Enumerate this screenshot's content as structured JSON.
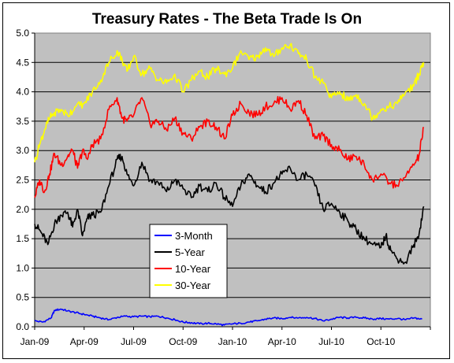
{
  "chart_data": {
    "type": "line",
    "title": "Treasury Rates - The Beta Trade Is On",
    "xlabel": "",
    "ylabel": "",
    "ylim": [
      0.0,
      5.0
    ],
    "yticks": [
      "0.0",
      "0.5",
      "1.0",
      "1.5",
      "2.0",
      "2.5",
      "3.0",
      "3.5",
      "4.0",
      "4.5",
      "5.0"
    ],
    "xticks": [
      "Jan-09",
      "Apr-09",
      "Jul-09",
      "Oct-09",
      "Jan-10",
      "Apr-10",
      "Jul-10",
      "Oct-10"
    ],
    "grid": "horizontal",
    "plot_background": "#c0c0c0",
    "legend_position": "bottom-left, inside plot",
    "x_unit": "months since start of Jan-09",
    "series": [
      {
        "name": "3-Month",
        "color": "#0000ff",
        "x": [
          0,
          0.5,
          1,
          1.2,
          1.6,
          2,
          2.5,
          3,
          3.5,
          4,
          4.5,
          5,
          5.5,
          6,
          6.5,
          7,
          7.5,
          8,
          8.5,
          9,
          9.5,
          10,
          10.5,
          11,
          11.5,
          12,
          12.5,
          13,
          13.5,
          14,
          14.5,
          15,
          15.5,
          16,
          16.5,
          17,
          17.5,
          18,
          18.5,
          19,
          19.5,
          20,
          20.5,
          21,
          21.5,
          22,
          22.5,
          23,
          23.5
        ],
        "values": [
          0.1,
          0.08,
          0.15,
          0.28,
          0.3,
          0.27,
          0.24,
          0.21,
          0.18,
          0.15,
          0.12,
          0.16,
          0.18,
          0.17,
          0.18,
          0.17,
          0.18,
          0.15,
          0.12,
          0.08,
          0.07,
          0.05,
          0.06,
          0.05,
          0.03,
          0.05,
          0.06,
          0.08,
          0.1,
          0.13,
          0.15,
          0.14,
          0.16,
          0.15,
          0.16,
          0.14,
          0.1,
          0.13,
          0.16,
          0.15,
          0.16,
          0.15,
          0.13,
          0.14,
          0.13,
          0.14,
          0.12,
          0.15,
          0.13
        ]
      },
      {
        "name": "5-Year",
        "color": "#000000",
        "x": [
          0,
          0.4,
          0.8,
          1.2,
          1.6,
          2,
          2.3,
          2.6,
          2.9,
          3.2,
          3.5,
          4,
          4.5,
          5,
          5.3,
          5.6,
          6,
          6.5,
          7,
          7.5,
          8,
          8.5,
          9,
          9.5,
          10,
          10.5,
          11,
          11.5,
          12,
          12.5,
          13,
          13.5,
          14,
          14.5,
          15,
          15.5,
          16,
          16.5,
          17,
          17.5,
          18,
          18.5,
          19,
          19.5,
          20,
          20.5,
          21,
          21.3,
          21.6,
          22,
          22.5,
          23,
          23.3,
          23.6
        ],
        "values": [
          1.75,
          1.6,
          1.4,
          1.75,
          1.9,
          1.95,
          1.7,
          2.0,
          1.55,
          1.85,
          1.9,
          1.95,
          2.4,
          2.85,
          2.9,
          2.6,
          2.4,
          2.8,
          2.5,
          2.45,
          2.3,
          2.5,
          2.35,
          2.2,
          2.4,
          2.3,
          2.45,
          2.2,
          2.05,
          2.4,
          2.6,
          2.4,
          2.3,
          2.45,
          2.6,
          2.7,
          2.5,
          2.6,
          2.4,
          2.0,
          2.1,
          1.95,
          1.8,
          1.65,
          1.5,
          1.4,
          1.35,
          1.55,
          1.3,
          1.15,
          1.1,
          1.4,
          1.55,
          2.05
        ]
      },
      {
        "name": "10-Year",
        "color": "#ff0000",
        "x": [
          0,
          0.3,
          0.6,
          0.9,
          1.2,
          1.6,
          2,
          2.3,
          2.6,
          2.9,
          3.2,
          3.5,
          4,
          4.5,
          5,
          5.3,
          5.6,
          6,
          6.5,
          7,
          7.5,
          8,
          8.5,
          9,
          9.5,
          10,
          10.5,
          11,
          11.5,
          12,
          12.5,
          13,
          13.5,
          14,
          14.5,
          15,
          15.5,
          16,
          16.5,
          17,
          17.5,
          18,
          18.5,
          19,
          19.5,
          20,
          20.5,
          21,
          21.5,
          22,
          22.5,
          23,
          23.3,
          23.6
        ],
        "values": [
          2.2,
          2.5,
          2.3,
          2.6,
          2.95,
          2.75,
          2.9,
          3.0,
          2.7,
          3.0,
          2.85,
          3.1,
          3.2,
          3.7,
          3.9,
          3.55,
          3.5,
          3.6,
          3.9,
          3.45,
          3.5,
          3.35,
          3.55,
          3.3,
          3.2,
          3.4,
          3.5,
          3.4,
          3.2,
          3.6,
          3.8,
          3.65,
          3.6,
          3.75,
          3.8,
          3.9,
          3.7,
          3.85,
          3.6,
          3.2,
          3.25,
          3.1,
          3.0,
          2.85,
          2.9,
          2.75,
          2.5,
          2.6,
          2.45,
          2.4,
          2.55,
          2.75,
          2.9,
          3.4
        ]
      },
      {
        "name": "30-Year",
        "color": "#ffff00",
        "x": [
          0,
          0.3,
          0.6,
          0.9,
          1.2,
          1.6,
          2,
          2.5,
          3,
          3.5,
          4,
          4.5,
          5,
          5.3,
          5.6,
          6,
          6.5,
          7,
          7.5,
          8,
          8.5,
          9,
          9.5,
          10,
          10.5,
          11,
          11.5,
          12,
          12.5,
          13,
          13.5,
          14,
          14.5,
          15,
          15.5,
          16,
          16.5,
          17,
          17.5,
          18,
          18.5,
          19,
          19.5,
          20,
          20.5,
          21,
          21.5,
          22,
          22.5,
          23,
          23.3,
          23.6
        ],
        "values": [
          2.8,
          3.1,
          3.35,
          3.55,
          3.65,
          3.7,
          3.6,
          3.75,
          3.8,
          4.0,
          4.2,
          4.5,
          4.7,
          4.55,
          4.35,
          4.6,
          4.3,
          4.4,
          4.2,
          4.15,
          4.3,
          4.0,
          4.2,
          4.35,
          4.25,
          4.4,
          4.3,
          4.4,
          4.7,
          4.55,
          4.6,
          4.75,
          4.6,
          4.75,
          4.8,
          4.65,
          4.55,
          4.25,
          4.15,
          3.9,
          4.0,
          3.85,
          3.95,
          3.8,
          3.55,
          3.7,
          3.75,
          3.8,
          4.0,
          4.1,
          4.3,
          4.5
        ]
      }
    ]
  }
}
